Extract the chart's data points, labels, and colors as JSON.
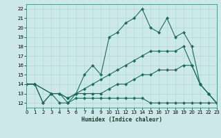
{
  "xlabel": "Humidex (Indice chaleur)",
  "ylabel": "",
  "bg_color": "#cce8e8",
  "grid_color": "#b0d8d8",
  "line_color": "#1a6b5a",
  "xlim": [
    0,
    23
  ],
  "ylim": [
    11.5,
    22.5
  ],
  "xticks": [
    0,
    1,
    2,
    3,
    4,
    5,
    6,
    7,
    8,
    9,
    10,
    11,
    12,
    13,
    14,
    15,
    16,
    17,
    18,
    19,
    20,
    21,
    22,
    23
  ],
  "yticks": [
    12,
    13,
    14,
    15,
    16,
    17,
    18,
    19,
    20,
    21,
    22
  ],
  "lines": [
    {
      "x": [
        0,
        1,
        2,
        3,
        4,
        5,
        6,
        7,
        8,
        9,
        10,
        11,
        12,
        13,
        14,
        15,
        16,
        17,
        18,
        19,
        20,
        21,
        22,
        23
      ],
      "y": [
        14,
        14,
        12,
        13,
        12,
        12,
        13,
        15,
        16,
        15,
        19,
        19.5,
        20.5,
        21,
        22,
        20,
        19.5,
        21,
        19,
        19.5,
        18,
        14,
        13,
        12
      ]
    },
    {
      "x": [
        0,
        1,
        3,
        4,
        5,
        6,
        7,
        8,
        9,
        10,
        11,
        12,
        13,
        14,
        15,
        16,
        17,
        18,
        19,
        20,
        21,
        22,
        23
      ],
      "y": [
        14,
        14,
        13,
        13,
        12.5,
        13,
        13.5,
        14,
        14.5,
        15,
        15.5,
        16,
        16.5,
        17,
        17.5,
        17.5,
        17.5,
        17.5,
        18,
        16,
        14,
        13,
        12
      ]
    },
    {
      "x": [
        0,
        1,
        3,
        4,
        5,
        6,
        7,
        8,
        9,
        10,
        11,
        12,
        13,
        14,
        15,
        16,
        17,
        18,
        19,
        20,
        21,
        22,
        23
      ],
      "y": [
        14,
        14,
        13,
        13,
        12.5,
        13,
        13,
        13,
        13,
        13.5,
        14,
        14,
        14.5,
        15,
        15,
        15.5,
        15.5,
        15.5,
        16,
        16,
        14,
        13,
        12
      ]
    },
    {
      "x": [
        0,
        1,
        2,
        3,
        4,
        5,
        6,
        7,
        8,
        9,
        10,
        11,
        12,
        13,
        14,
        15,
        16,
        17,
        18,
        19,
        20,
        21,
        22,
        23
      ],
      "y": [
        14,
        14,
        12,
        13,
        13,
        12,
        12.5,
        12.5,
        12.5,
        12.5,
        12.5,
        12.5,
        12.5,
        12.5,
        12.5,
        12,
        12,
        12,
        12,
        12,
        12,
        12,
        12,
        12
      ]
    }
  ]
}
